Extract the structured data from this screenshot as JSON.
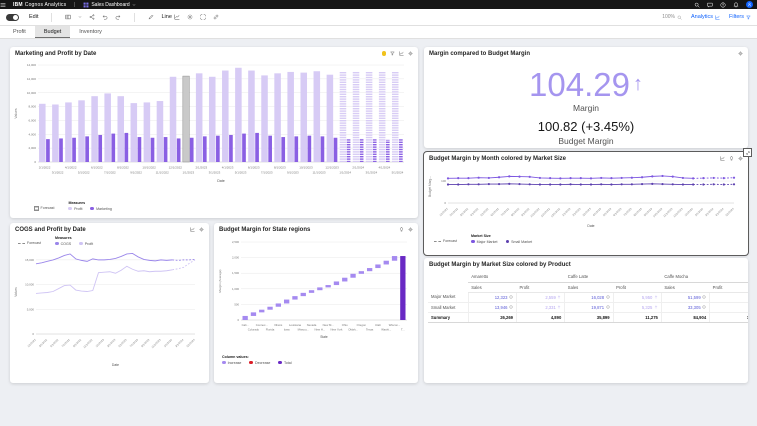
{
  "topbar": {
    "brand_bold": "IBM",
    "brand_rest": "Cognos Analytics",
    "doc_title": "Sales Dashboard"
  },
  "toolbar": {
    "edit_label": "Edit",
    "chart_type_label": "Line",
    "zoom_label": "100%",
    "analytics_label": "Analytics",
    "filters_label": "Filters"
  },
  "tabs": [
    {
      "label": "Profit",
      "active": false
    },
    {
      "label": "Budget",
      "active": true
    },
    {
      "label": "Inventory",
      "active": false
    }
  ],
  "panels": {
    "marketing": {
      "title": "Marketing and Profit by Date"
    },
    "kpi": {
      "title": "Margin compared to Budget Margin",
      "value": "104.29",
      "arrow": "↑",
      "value_label": "Margin",
      "secondary": "100.82 (+3.45%)",
      "secondary_label": "Budget Margin"
    },
    "budget_line": {
      "title": "Budget Margin by Month colored by Market Size"
    },
    "cogs": {
      "title": "COGS and Profit by Date"
    },
    "waterfall": {
      "title": "Budget Margin for State regions"
    },
    "table": {
      "title": "Budget Margin by Market Size colored by Product"
    }
  },
  "colors": {
    "accent_blue": "#0f62fe",
    "profit_light": "#d7cbf5",
    "marketing_dark": "#8a5fe3",
    "kpi_purple": "#a595ef",
    "warn_yellow": "#f1c21b",
    "decrease_red": "#da1e28",
    "total_purple": "#6929c4",
    "highlight_gray": "#c9c9c9"
  },
  "chart_data": [
    {
      "id": "marketing_bar",
      "type": "bar",
      "title": "Marketing and Profit by Date",
      "xlabel": "Date",
      "ylabel": "Values",
      "ylim": [
        0,
        14000
      ],
      "ytick_step": 2000,
      "grid": true,
      "legend_position": "bottom",
      "forecast_label": "Forecast",
      "group_label": "Measures",
      "forecast_from": 23,
      "highlight_index": 11,
      "categories": [
        "2/1/2022",
        "3/1/2022",
        "4/1/2022",
        "5/1/2022",
        "6/1/2022",
        "7/1/2022",
        "8/1/2022",
        "9/1/2022",
        "10/1/2022",
        "11/1/2022",
        "12/1/2022",
        "1/1/2023",
        "2/1/2023",
        "3/1/2023",
        "4/1/2023",
        "5/1/2023",
        "6/1/2023",
        "7/1/2023",
        "8/1/2023",
        "9/1/2023",
        "10/1/2023",
        "11/1/2023",
        "12/1/2023",
        "1/1/2024",
        "2/1/2024",
        "3/1/2024",
        "4/1/2024",
        "5/1/2024"
      ],
      "series": [
        {
          "name": "Profit",
          "color": "#d7cbf5",
          "values": [
            8400,
            8300,
            8600,
            8900,
            9500,
            9900,
            9500,
            8500,
            8600,
            8800,
            12300,
            12400,
            12800,
            12300,
            13200,
            13600,
            13200,
            12500,
            12800,
            13000,
            12900,
            13100,
            12600,
            13000,
            13100,
            13000,
            13050,
            13000
          ]
        },
        {
          "name": "Marketing",
          "color": "#8a5fe3",
          "values": [
            3300,
            3400,
            3500,
            3700,
            3900,
            4100,
            4200,
            3600,
            3500,
            3600,
            3400,
            3500,
            3700,
            3800,
            3900,
            4100,
            4200,
            3800,
            3600,
            3700,
            3800,
            3700,
            3500,
            3300,
            3400,
            3300,
            3200,
            3300
          ]
        }
      ]
    },
    {
      "id": "budget_margin_line",
      "type": "line",
      "title": "Budget Margin by Month colored by Market Size",
      "xlabel": "Date",
      "ylabel": "Budget Marg...",
      "ylim": [
        0,
        150
      ],
      "yticks": [
        0,
        100
      ],
      "grid": true,
      "dots": true,
      "rotate_labels": true,
      "xtick_every": 1,
      "legend_position": "bottom",
      "forecast_label": "Forecast",
      "group_label": "Market Size",
      "forecast_from": 24,
      "x": [
        "1/1/2022",
        "2/1/2022",
        "3/1/2022",
        "4/1/2022",
        "5/1/2022",
        "6/1/2022",
        "7/1/2022",
        "8/1/2022",
        "9/1/2022",
        "10/1/2022",
        "11/1/2022",
        "12/1/2022",
        "1/1/2023",
        "2/1/2023",
        "3/1/2023",
        "4/1/2023",
        "5/1/2023",
        "6/1/2023",
        "7/1/2023",
        "8/1/2023",
        "9/1/2023",
        "10/1/2023",
        "11/1/2023",
        "12/1/2023",
        "1/1/2024",
        "2/1/2024",
        "3/1/2024",
        "4/1/2024",
        "5/1/2024"
      ],
      "series": [
        {
          "name": "Major Market",
          "color": "#7d57e0",
          "values": [
            112,
            113,
            113,
            115,
            114,
            117,
            121,
            120,
            119,
            114,
            113,
            112,
            113,
            113,
            112,
            114,
            113,
            114,
            115,
            117,
            121,
            123,
            120,
            114,
            112,
            113,
            114,
            113,
            115
          ]
        },
        {
          "name": "Small Market",
          "color": "#5b3fae",
          "values": [
            84,
            84,
            85,
            85,
            86,
            86,
            87,
            86,
            85,
            84,
            84,
            84,
            85,
            84,
            84,
            85,
            84,
            85,
            85,
            86,
            87,
            86,
            85,
            84,
            84,
            84,
            85,
            84,
            85
          ]
        }
      ]
    },
    {
      "id": "cogs_line",
      "type": "line",
      "title": "COGS and Profit by Date",
      "xlabel": "Date",
      "ylabel": "Values",
      "ylim": [
        0,
        17000
      ],
      "yticks": [
        0,
        5000,
        10000,
        15000
      ],
      "grid": true,
      "dots": false,
      "rotate_labels": true,
      "xtick_every": 2,
      "legend_position": "top",
      "forecast_label": "Forecast",
      "group_label": "Measures",
      "forecast_from": 24,
      "x": [
        "1/1/2022",
        "2/1/2022",
        "3/1/2022",
        "4/1/2022",
        "5/1/2022",
        "6/1/2022",
        "7/1/2022",
        "8/1/2022",
        "9/1/2022",
        "10/1/2022",
        "11/1/2022",
        "12/1/2022",
        "1/1/2023",
        "2/1/2023",
        "3/1/2023",
        "4/1/2023",
        "5/1/2023",
        "6/1/2023",
        "7/1/2023",
        "8/1/2023",
        "9/1/2023",
        "10/1/2023",
        "11/1/2023",
        "12/1/2023",
        "1/1/2024",
        "2/1/2024",
        "3/1/2024",
        "4/1/2024",
        "5/1/2024"
      ],
      "series": [
        {
          "name": "COGS",
          "color": "#9a86ea",
          "values": [
            14200,
            14400,
            14700,
            15000,
            15400,
            15900,
            16200,
            15200,
            14900,
            14700,
            15200,
            15000,
            15000,
            15100,
            15300,
            15700,
            16200,
            16300,
            15600,
            15100,
            14900,
            14800,
            15000,
            14900,
            15000,
            14900,
            15000,
            15000,
            15100
          ]
        },
        {
          "name": "Profit",
          "color": "#cfc4f4",
          "values": [
            8200,
            8300,
            8400,
            8600,
            9200,
            9800,
            9900,
            8900,
            8700,
            8600,
            8800,
            12400,
            12500,
            12600,
            12300,
            12900,
            13700,
            13100,
            12700,
            12800,
            12600,
            12700,
            12700,
            12800,
            13000,
            13200,
            13500,
            14300,
            15000
          ]
        }
      ]
    },
    {
      "id": "state_waterfall",
      "type": "bar",
      "subtype": "waterfall",
      "title": "Budget Margin for State regions",
      "xlabel": "State",
      "ylabel": "Margin (Average)",
      "ylim": [
        0,
        2500
      ],
      "ytick_step": 500,
      "grid": true,
      "legend_position": "bottom",
      "group_label": "Column values:",
      "legend_items": [
        {
          "name": "Increase",
          "color": "#a58af0"
        },
        {
          "name": "Decrease",
          "color": "#da1e28"
        },
        {
          "name": "Total",
          "color": "#6929c4"
        }
      ],
      "categories": [
        "Cali...",
        "Colorado",
        "Connec...",
        "Florida",
        "Illinois",
        "Iowa",
        "Louisiana",
        "Missou...",
        "Nevada",
        "New H...",
        "New M...",
        "New York",
        "Ohio",
        "Oklah...",
        "Oregon",
        "Texas",
        "Utah",
        "Washi...",
        "Wiscon...",
        "T..."
      ],
      "deltas": [
        130,
        115,
        85,
        95,
        105,
        125,
        110,
        105,
        85,
        90,
        75,
        115,
        120,
        125,
        85,
        100,
        115,
        120,
        150
      ],
      "total": 2050
    },
    {
      "id": "market_product_table",
      "type": "table",
      "title": "Budget Margin by Market Size colored by Product",
      "groups": [
        "Amaretto",
        "Caffe Latte",
        "Caffe Mocha"
      ],
      "sub_headers": [
        "Sales",
        "Profit"
      ],
      "rows": [
        {
          "label": "Major Market",
          "cells": [
            {
              "v": "12,323",
              "kind": "sales"
            },
            {
              "v": "2,559",
              "kind": "profit"
            },
            {
              "v": "16,028",
              "kind": "sales"
            },
            {
              "v": "5,950",
              "kind": "profit"
            },
            {
              "v": "51,599",
              "kind": "sales"
            },
            {
              "v": "9,8",
              "kind": "profit-clipped"
            }
          ]
        },
        {
          "label": "Small Market",
          "cells": [
            {
              "v": "13,946",
              "kind": "sales"
            },
            {
              "v": "2,331",
              "kind": "profit"
            },
            {
              "v": "19,871",
              "kind": "sales"
            },
            {
              "v": "5,325",
              "kind": "profit"
            },
            {
              "v": "33,305",
              "kind": "sales"
            },
            {
              "v": "7,6",
              "kind": "profit-clipped"
            }
          ]
        }
      ],
      "summary": {
        "label": "Summary",
        "cells": [
          "26,269",
          "4,890",
          "35,899",
          "11,275",
          "84,904",
          "17,4"
        ]
      }
    }
  ]
}
